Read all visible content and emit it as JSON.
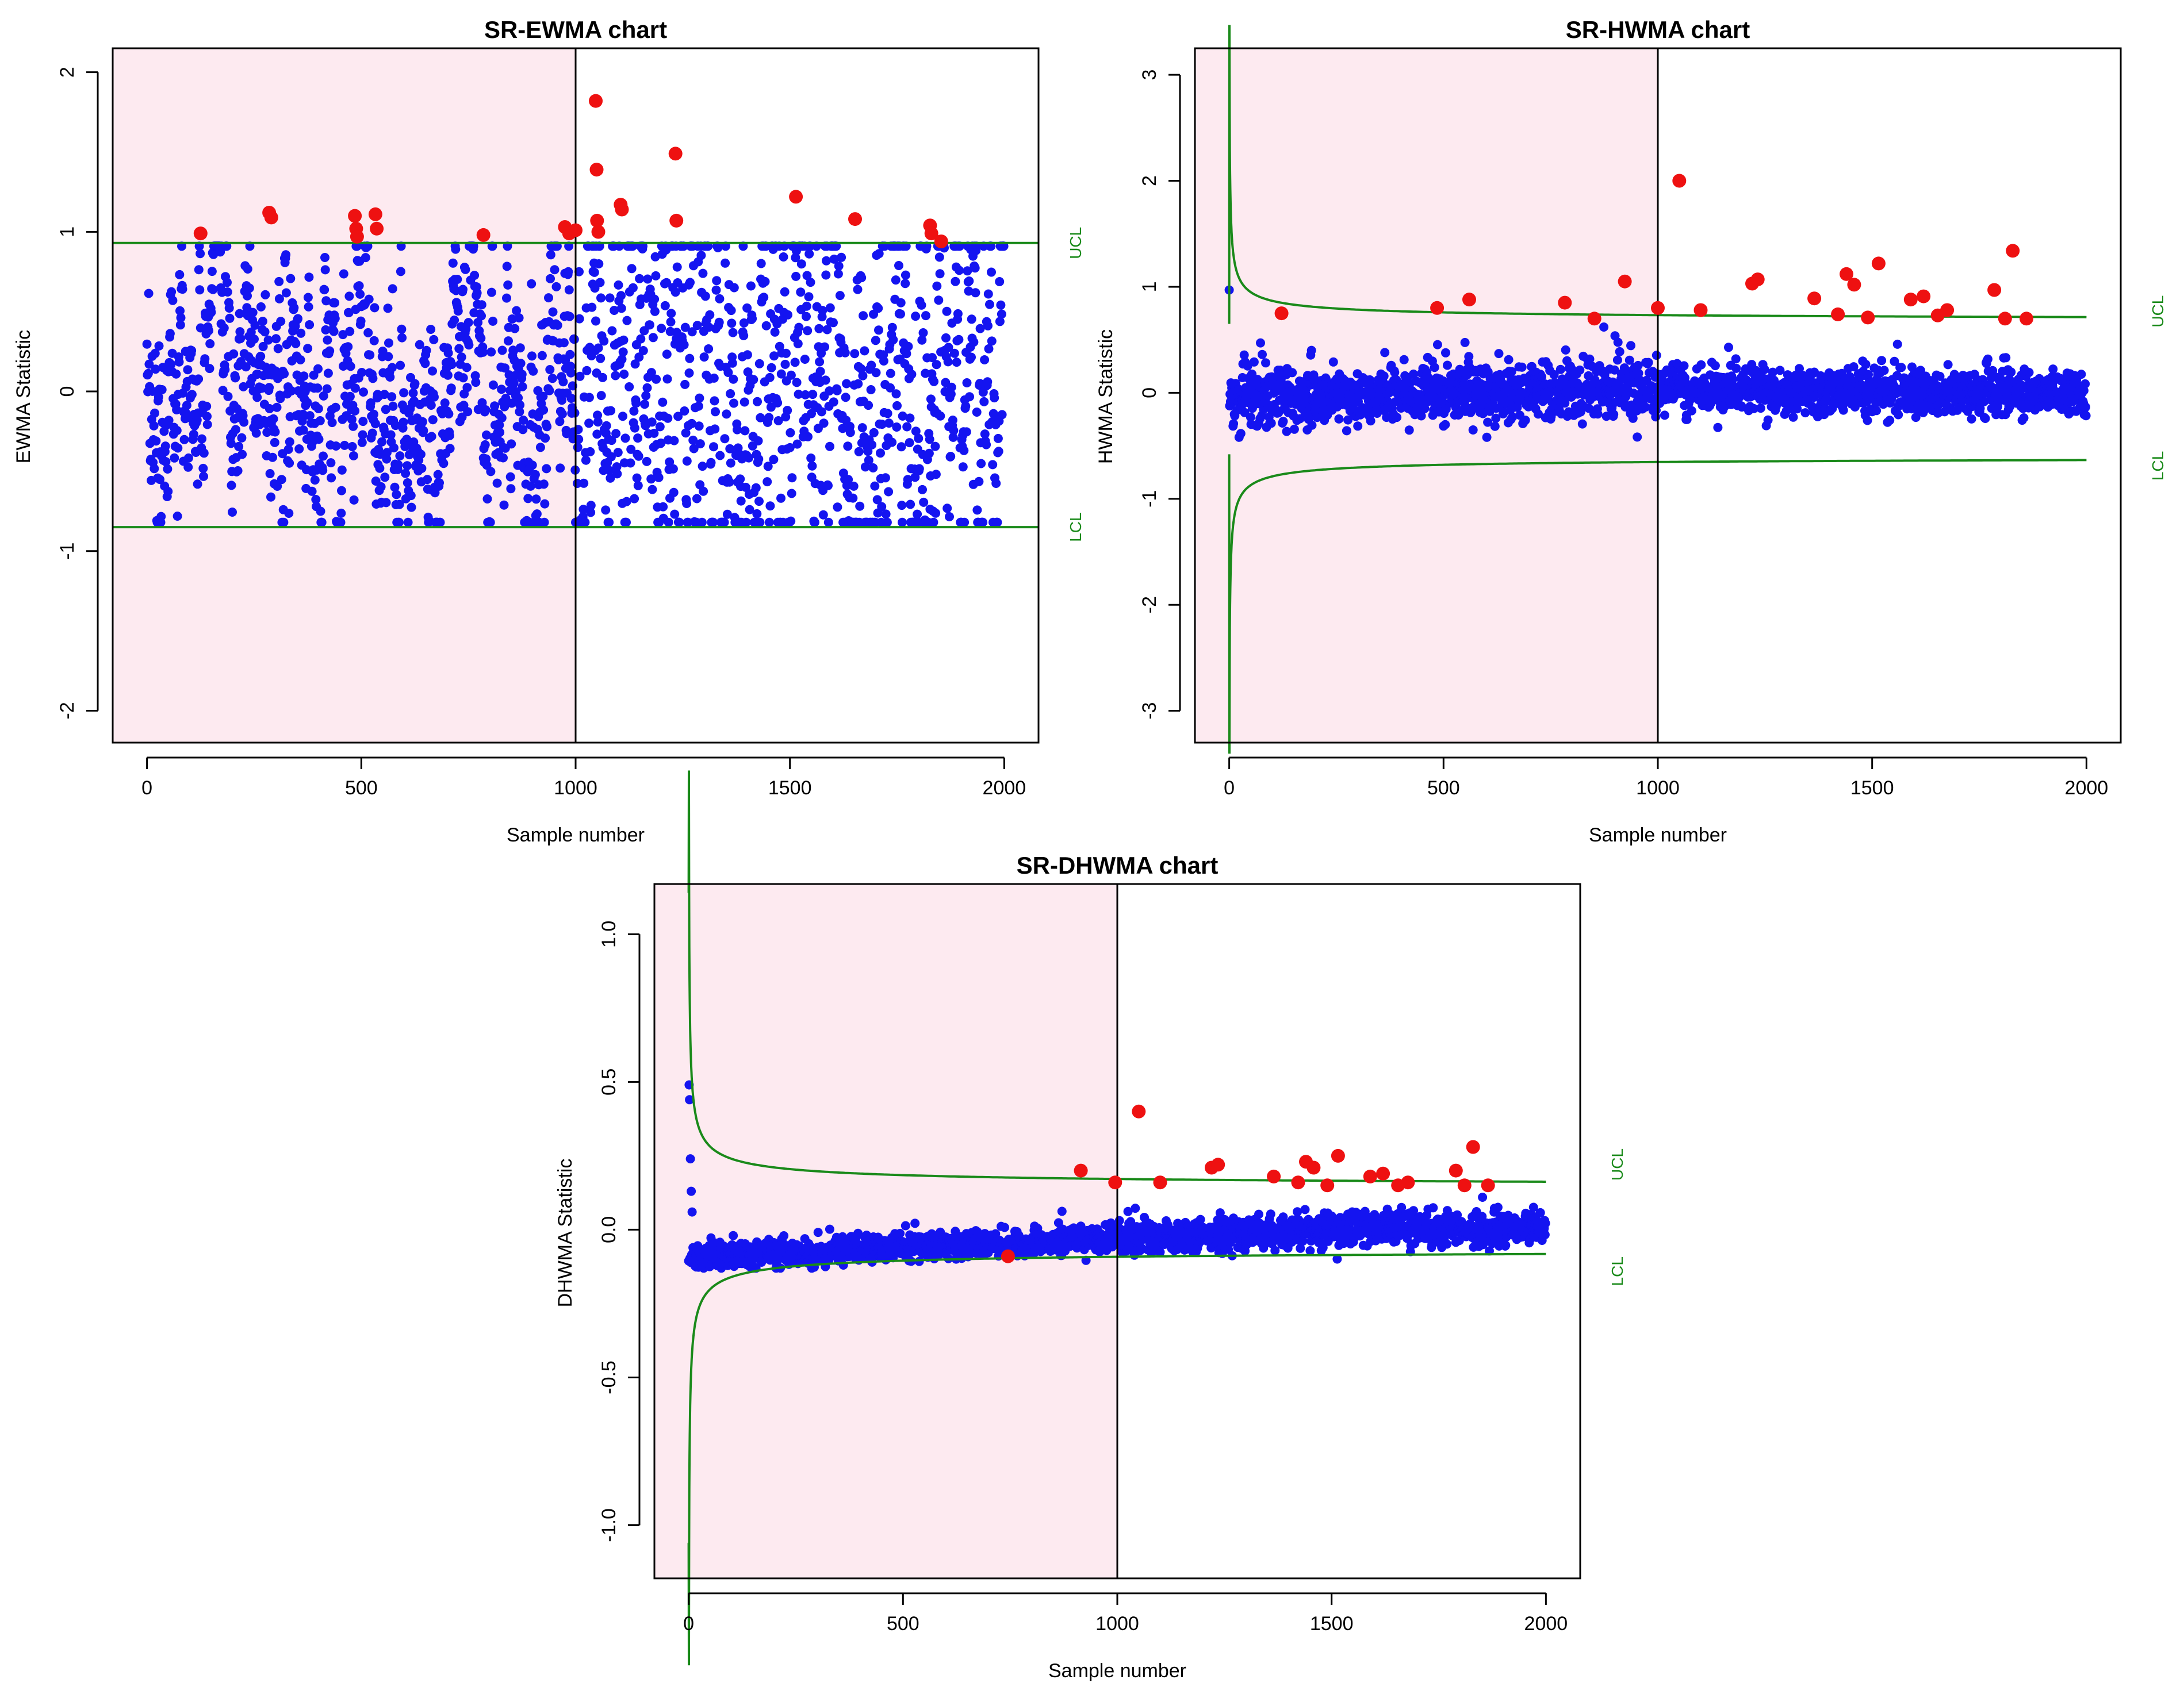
{
  "colors": {
    "background": "#ffffff",
    "phase1_shade": "#fdeaf0",
    "in_control_point": "#1414f0",
    "out_of_control_point": "#ee1111",
    "control_limit": "#1a8a1a",
    "axis": "#000000"
  },
  "chart_data": [
    {
      "type": "scatter",
      "title": "SR-EWMA chart",
      "xlabel": "Sample number",
      "ylabel": "EWMA Statistic",
      "xlim": [
        -80,
        2080
      ],
      "ylim": [
        -2.2,
        2.15
      ],
      "xticks": [
        0,
        500,
        1000,
        1500,
        2000
      ],
      "yticks": [
        -2,
        -1,
        0,
        1,
        2
      ],
      "ytick_labels": [
        "-2",
        "-1",
        "0",
        "1",
        "2"
      ],
      "phase1_region": [
        -80,
        1000
      ],
      "phase_divider_x": 1000,
      "ucl": {
        "label": "UCL",
        "kind": "constant",
        "value": 0.93
      },
      "lcl": {
        "label": "LCL",
        "kind": "constant",
        "value": -0.85
      },
      "n_samples": 2000,
      "in_control_points": {
        "description": "2000 EWMA statistics, mostly between -0.8 and 0.9, roughly centered at 0",
        "range": [
          -0.82,
          0.92
        ]
      },
      "out_of_control_points": [
        {
          "x": 125,
          "y": 0.99
        },
        {
          "x": 285,
          "y": 1.12
        },
        {
          "x": 290,
          "y": 1.09
        },
        {
          "x": 485,
          "y": 1.1
        },
        {
          "x": 488,
          "y": 1.02
        },
        {
          "x": 490,
          "y": 0.97
        },
        {
          "x": 533,
          "y": 1.11
        },
        {
          "x": 536,
          "y": 1.02
        },
        {
          "x": 785,
          "y": 0.98
        },
        {
          "x": 975,
          "y": 1.03
        },
        {
          "x": 985,
          "y": 0.99
        },
        {
          "x": 1000,
          "y": 1.01
        },
        {
          "x": 1047,
          "y": 1.82
        },
        {
          "x": 1049,
          "y": 1.39
        },
        {
          "x": 1050,
          "y": 1.07
        },
        {
          "x": 1053,
          "y": 1.0
        },
        {
          "x": 1105,
          "y": 1.17
        },
        {
          "x": 1108,
          "y": 1.14
        },
        {
          "x": 1233,
          "y": 1.49
        },
        {
          "x": 1235,
          "y": 1.07
        },
        {
          "x": 1514,
          "y": 1.22
        },
        {
          "x": 1652,
          "y": 1.08
        },
        {
          "x": 1827,
          "y": 1.04
        },
        {
          "x": 1830,
          "y": 0.99
        },
        {
          "x": 1853,
          "y": 0.94
        }
      ]
    },
    {
      "type": "scatter",
      "title": "SR-HWMA chart",
      "xlabel": "Sample number",
      "ylabel": "HWMA Statistic",
      "xlim": [
        -80,
        2080
      ],
      "ylim": [
        -3.3,
        3.25
      ],
      "xticks": [
        0,
        500,
        1000,
        1500,
        2000
      ],
      "yticks": [
        -3,
        -2,
        -1,
        0,
        1,
        2,
        3
      ],
      "ytick_labels": [
        "-3",
        "-2",
        "-1",
        "0",
        "1",
        "2",
        "3"
      ],
      "phase1_region": [
        -80,
        1000
      ],
      "phase_divider_x": 1000,
      "ucl": {
        "label": "UCL",
        "kind": "time-varying",
        "start": 2.65,
        "steady": 0.67,
        "initial": 0.65
      },
      "lcl": {
        "label": "LCL",
        "kind": "time-varying",
        "start": -2.58,
        "steady": -0.59,
        "initial": -0.58
      },
      "n_samples": 2000,
      "in_control_points": {
        "description": "2000 HWMA statistics, mostly between -0.4 and 0.7, centered at 0",
        "range": [
          -0.42,
          0.97
        ]
      },
      "out_of_control_points": [
        {
          "x": 122,
          "y": 0.75
        },
        {
          "x": 485,
          "y": 0.8
        },
        {
          "x": 560,
          "y": 0.88
        },
        {
          "x": 783,
          "y": 0.85
        },
        {
          "x": 852,
          "y": 0.7
        },
        {
          "x": 923,
          "y": 1.05
        },
        {
          "x": 1000,
          "y": 0.8
        },
        {
          "x": 1050,
          "y": 2.0
        },
        {
          "x": 1100,
          "y": 0.78
        },
        {
          "x": 1220,
          "y": 1.03
        },
        {
          "x": 1233,
          "y": 1.07
        },
        {
          "x": 1365,
          "y": 0.89
        },
        {
          "x": 1420,
          "y": 0.74
        },
        {
          "x": 1440,
          "y": 1.12
        },
        {
          "x": 1458,
          "y": 1.02
        },
        {
          "x": 1490,
          "y": 0.71
        },
        {
          "x": 1515,
          "y": 1.22
        },
        {
          "x": 1590,
          "y": 0.88
        },
        {
          "x": 1620,
          "y": 0.91
        },
        {
          "x": 1653,
          "y": 0.73
        },
        {
          "x": 1675,
          "y": 0.78
        },
        {
          "x": 1785,
          "y": 0.97
        },
        {
          "x": 1810,
          "y": 0.7
        },
        {
          "x": 1828,
          "y": 1.34
        },
        {
          "x": 1860,
          "y": 0.7
        }
      ]
    },
    {
      "type": "scatter",
      "title": "SR-DHWMA chart",
      "xlabel": "Sample number",
      "ylabel": "DHWMA Statistic",
      "xlim": [
        -80,
        2080
      ],
      "ylim": [
        -1.18,
        1.17
      ],
      "xticks": [
        0,
        500,
        1000,
        1500,
        2000
      ],
      "yticks": [
        -1.0,
        -0.5,
        0.0,
        0.5,
        1.0
      ],
      "ytick_labels": [
        "-1.0",
        "-0.5",
        "0.0",
        "0.5",
        "1.0"
      ],
      "phase1_region": [
        -80,
        1000
      ],
      "phase_divider_x": 1000,
      "ucl": {
        "label": "UCL",
        "kind": "time-varying",
        "start": 1.14,
        "steady": 0.14
      },
      "lcl": {
        "label": "LCL",
        "kind": "time-varying",
        "start": -1.06,
        "steady": -0.06
      },
      "n_samples": 2000,
      "in_control_points": {
        "description": "2000 DHWMA statistics, mostly between -0.13 and 0.15, drifting slightly upward",
        "range": [
          -0.13,
          0.49
        ]
      },
      "out_of_control_points": [
        {
          "x": 745,
          "y": -0.09
        },
        {
          "x": 915,
          "y": 0.2
        },
        {
          "x": 995,
          "y": 0.16
        },
        {
          "x": 1050,
          "y": 0.4
        },
        {
          "x": 1100,
          "y": 0.16
        },
        {
          "x": 1220,
          "y": 0.21
        },
        {
          "x": 1235,
          "y": 0.22
        },
        {
          "x": 1365,
          "y": 0.18
        },
        {
          "x": 1422,
          "y": 0.16
        },
        {
          "x": 1440,
          "y": 0.23
        },
        {
          "x": 1458,
          "y": 0.21
        },
        {
          "x": 1490,
          "y": 0.15
        },
        {
          "x": 1515,
          "y": 0.25
        },
        {
          "x": 1590,
          "y": 0.18
        },
        {
          "x": 1620,
          "y": 0.19
        },
        {
          "x": 1655,
          "y": 0.15
        },
        {
          "x": 1678,
          "y": 0.16
        },
        {
          "x": 1790,
          "y": 0.2
        },
        {
          "x": 1810,
          "y": 0.15
        },
        {
          "x": 1830,
          "y": 0.28
        },
        {
          "x": 1865,
          "y": 0.15
        }
      ]
    }
  ]
}
